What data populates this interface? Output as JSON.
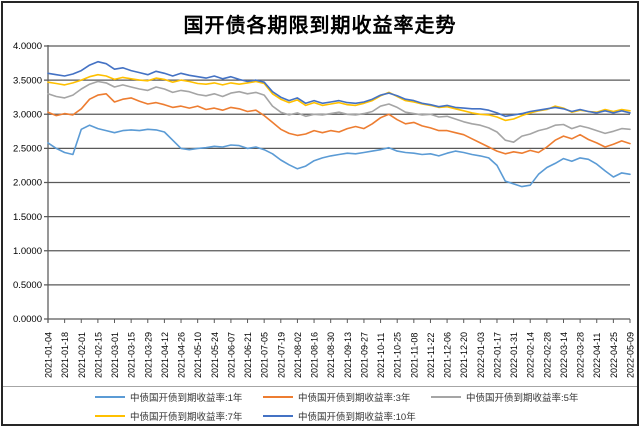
{
  "title": "国开债各期限到期收益率走势",
  "chart_data": {
    "type": "line",
    "title": "国开债各期限到期收益率走势",
    "xlabel": "",
    "ylabel": "",
    "ylim": [
      0,
      4
    ],
    "y_tick_step": 0.5,
    "grid": "horizontal",
    "grid_color": "#595959",
    "axis_text_color": "#000000",
    "legend_text_color": "#333333",
    "divider_color": "#a6a6a6",
    "legend_position": "bottom",
    "y_tick_labels": [
      "0.0000",
      "0.5000",
      "1.0000",
      "1.5000",
      "2.0000",
      "2.5000",
      "3.0000",
      "3.5000",
      "4.0000"
    ],
    "x_tick_labels": [
      "2021-01-04",
      "2021-01-18",
      "2021-02-01",
      "2021-02-15",
      "2021-03-01",
      "2021-03-15",
      "2021-03-29",
      "2021-04-12",
      "2021-04-26",
      "2021-05-10",
      "2021-05-24",
      "2021-06-07",
      "2021-06-21",
      "2021-07-05",
      "2021-07-19",
      "2021-08-02",
      "2021-08-16",
      "2021-08-30",
      "2021-09-13",
      "2021-09-27",
      "2021-10-11",
      "2021-10-25",
      "2021-11-08",
      "2021-11-22",
      "2021-12-06",
      "2021-12-20",
      "2022-01-03",
      "2022-01-17",
      "2022-01-31",
      "2022-02-14",
      "2022-02-28",
      "2022-03-14",
      "2022-03-28",
      "2022-04-11",
      "2022-04-25",
      "2022-05-09"
    ],
    "points_per_tick": 2,
    "series": [
      {
        "id": "1y",
        "name": "中债国开债到期收益率:1年",
        "color": "#5B9BD5",
        "values": [
          2.58,
          2.5,
          2.44,
          2.41,
          2.78,
          2.84,
          2.79,
          2.76,
          2.73,
          2.76,
          2.77,
          2.76,
          2.78,
          2.77,
          2.74,
          2.62,
          2.5,
          2.48,
          2.5,
          2.51,
          2.53,
          2.52,
          2.55,
          2.54,
          2.5,
          2.52,
          2.48,
          2.42,
          2.33,
          2.26,
          2.2,
          2.24,
          2.32,
          2.36,
          2.39,
          2.41,
          2.43,
          2.42,
          2.44,
          2.46,
          2.48,
          2.51,
          2.46,
          2.44,
          2.43,
          2.41,
          2.42,
          2.39,
          2.43,
          2.46,
          2.44,
          2.41,
          2.39,
          2.36,
          2.25,
          2.02,
          1.98,
          1.94,
          1.96,
          2.12,
          2.22,
          2.28,
          2.35,
          2.31,
          2.36,
          2.34,
          2.27,
          2.17,
          2.08,
          2.14,
          2.12
        ]
      },
      {
        "id": "3y",
        "name": "中债国开债到期收益率:3年",
        "color": "#ED7D31",
        "values": [
          3.03,
          2.98,
          3.01,
          2.99,
          3.08,
          3.22,
          3.28,
          3.3,
          3.18,
          3.22,
          3.24,
          3.19,
          3.15,
          3.17,
          3.14,
          3.1,
          3.12,
          3.09,
          3.12,
          3.07,
          3.09,
          3.06,
          3.1,
          3.08,
          3.04,
          3.06,
          2.98,
          2.88,
          2.78,
          2.72,
          2.69,
          2.71,
          2.76,
          2.73,
          2.76,
          2.74,
          2.79,
          2.82,
          2.79,
          2.86,
          2.95,
          3.0,
          2.92,
          2.86,
          2.88,
          2.83,
          2.8,
          2.76,
          2.76,
          2.73,
          2.7,
          2.64,
          2.58,
          2.52,
          2.46,
          2.42,
          2.45,
          2.43,
          2.47,
          2.44,
          2.52,
          2.62,
          2.68,
          2.64,
          2.7,
          2.63,
          2.58,
          2.52,
          2.56,
          2.61,
          2.57
        ]
      },
      {
        "id": "5y",
        "name": "中债国开债到期收益率:5年",
        "color": "#A5A5A5",
        "values": [
          3.3,
          3.26,
          3.24,
          3.28,
          3.37,
          3.44,
          3.48,
          3.46,
          3.4,
          3.43,
          3.4,
          3.37,
          3.35,
          3.4,
          3.37,
          3.32,
          3.35,
          3.33,
          3.29,
          3.27,
          3.3,
          3.26,
          3.31,
          3.33,
          3.3,
          3.32,
          3.28,
          3.12,
          3.03,
          2.99,
          3.02,
          2.97,
          3.0,
          2.99,
          3.01,
          3.03,
          3.0,
          2.99,
          3.01,
          3.04,
          3.12,
          3.15,
          3.1,
          3.03,
          3.01,
          2.99,
          3.0,
          2.96,
          2.97,
          2.93,
          2.89,
          2.86,
          2.84,
          2.8,
          2.74,
          2.62,
          2.59,
          2.68,
          2.71,
          2.76,
          2.79,
          2.84,
          2.85,
          2.79,
          2.83,
          2.8,
          2.76,
          2.72,
          2.75,
          2.79,
          2.78
        ]
      },
      {
        "id": "7y",
        "name": "中债国开债到期收益率:7年",
        "color": "#FFC000",
        "values": [
          3.47,
          3.45,
          3.43,
          3.46,
          3.5,
          3.55,
          3.58,
          3.56,
          3.51,
          3.54,
          3.52,
          3.5,
          3.49,
          3.53,
          3.51,
          3.47,
          3.5,
          3.48,
          3.45,
          3.44,
          3.46,
          3.43,
          3.46,
          3.44,
          3.46,
          3.48,
          3.45,
          3.3,
          3.22,
          3.17,
          3.21,
          3.13,
          3.17,
          3.13,
          3.15,
          3.17,
          3.14,
          3.13,
          3.16,
          3.2,
          3.27,
          3.32,
          3.26,
          3.2,
          3.18,
          3.15,
          3.13,
          3.1,
          3.11,
          3.08,
          3.05,
          3.02,
          3.0,
          2.99,
          2.96,
          2.91,
          2.93,
          2.98,
          3.02,
          3.05,
          3.07,
          3.12,
          3.09,
          3.03,
          3.06,
          3.04,
          3.03,
          3.07,
          3.04,
          3.07,
          3.05
        ]
      },
      {
        "id": "10y",
        "name": "中债国开债到期收益率:10年",
        "color": "#4472C4",
        "values": [
          3.6,
          3.58,
          3.56,
          3.59,
          3.64,
          3.72,
          3.77,
          3.74,
          3.66,
          3.68,
          3.64,
          3.61,
          3.58,
          3.63,
          3.6,
          3.56,
          3.6,
          3.57,
          3.55,
          3.53,
          3.56,
          3.52,
          3.55,
          3.51,
          3.48,
          3.5,
          3.47,
          3.33,
          3.25,
          3.2,
          3.24,
          3.16,
          3.2,
          3.16,
          3.18,
          3.2,
          3.17,
          3.16,
          3.18,
          3.22,
          3.28,
          3.31,
          3.27,
          3.22,
          3.2,
          3.16,
          3.14,
          3.11,
          3.13,
          3.1,
          3.09,
          3.08,
          3.08,
          3.06,
          3.02,
          2.97,
          2.99,
          3.01,
          3.04,
          3.06,
          3.08,
          3.1,
          3.08,
          3.04,
          3.07,
          3.04,
          3.02,
          3.05,
          3.02,
          3.05,
          3.02
        ]
      }
    ]
  }
}
